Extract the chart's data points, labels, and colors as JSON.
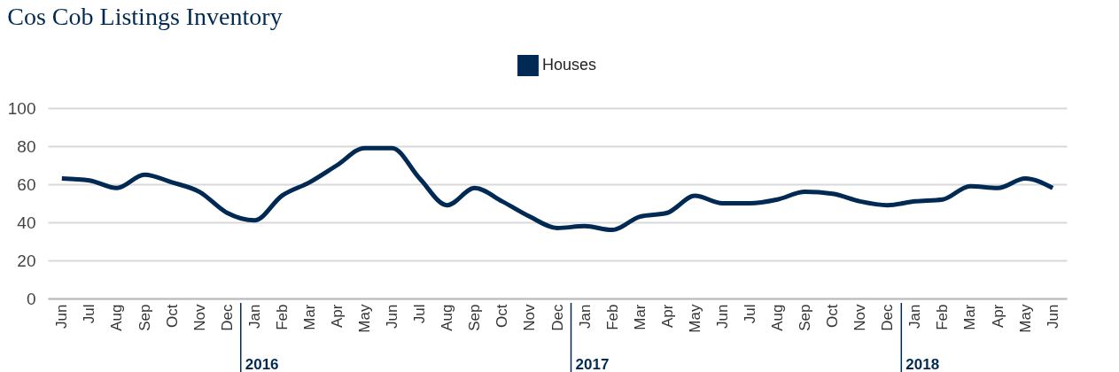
{
  "chart_data": {
    "type": "line",
    "title": "Cos Cob Listings Inventory",
    "x": [
      "2015-06",
      "2015-07",
      "2015-08",
      "2015-09",
      "2015-10",
      "2015-11",
      "2015-12",
      "2016-01",
      "2016-02",
      "2016-03",
      "2016-04",
      "2016-05",
      "2016-06",
      "2016-07",
      "2016-08",
      "2016-09",
      "2016-10",
      "2016-11",
      "2016-12",
      "2017-01",
      "2017-02",
      "2017-03",
      "2017-04",
      "2017-05",
      "2017-06",
      "2017-07",
      "2017-08",
      "2017-09",
      "2017-10",
      "2017-11",
      "2017-12",
      "2018-01",
      "2018-02",
      "2018-03",
      "2018-04",
      "2018-05",
      "2018-06"
    ],
    "series": [
      {
        "name": "Houses",
        "color": "#002a54",
        "values": [
          63,
          62,
          58,
          65,
          61,
          56,
          45,
          41,
          54,
          61,
          70,
          79,
          79,
          63,
          49,
          58,
          51,
          43,
          37,
          38,
          36,
          43,
          45,
          54,
          50,
          50,
          52,
          56,
          55,
          51,
          49,
          51,
          52,
          59,
          58,
          63,
          58
        ]
      }
    ],
    "xticks": [
      {
        "value": "2015-06",
        "label": "Jun"
      },
      {
        "value": "2015-07",
        "label": "Jul"
      },
      {
        "value": "2015-08",
        "label": "Aug"
      },
      {
        "value": "2015-09",
        "label": "Sep"
      },
      {
        "value": "2015-10",
        "label": "Oct"
      },
      {
        "value": "2015-11",
        "label": "Nov"
      },
      {
        "value": "2015-12",
        "label": "Dec"
      },
      {
        "value": "2016-01",
        "label": "Jan"
      },
      {
        "value": "2016-02",
        "label": "Feb"
      },
      {
        "value": "2016-03",
        "label": "Mar"
      },
      {
        "value": "2016-04",
        "label": "Apr"
      },
      {
        "value": "2016-05",
        "label": "May"
      },
      {
        "value": "2016-06",
        "label": "Jun"
      },
      {
        "value": "2016-07",
        "label": "Jul"
      },
      {
        "value": "2016-08",
        "label": "Aug"
      },
      {
        "value": "2016-09",
        "label": "Sep"
      },
      {
        "value": "2016-10",
        "label": "Oct"
      },
      {
        "value": "2016-11",
        "label": "Nov"
      },
      {
        "value": "2016-12",
        "label": "Dec"
      },
      {
        "value": "2017-01",
        "label": "Jan"
      },
      {
        "value": "2017-02",
        "label": "Feb"
      },
      {
        "value": "2017-03",
        "label": "Mar"
      },
      {
        "value": "2017-04",
        "label": "Apr"
      },
      {
        "value": "2017-05",
        "label": "May"
      },
      {
        "value": "2017-06",
        "label": "Jun"
      },
      {
        "value": "2017-07",
        "label": "Jul"
      },
      {
        "value": "2017-08",
        "label": "Aug"
      },
      {
        "value": "2017-09",
        "label": "Sep"
      },
      {
        "value": "2017-10",
        "label": "Oct"
      },
      {
        "value": "2017-11",
        "label": "Nov"
      },
      {
        "value": "2017-12",
        "label": "Dec"
      },
      {
        "value": "2018-01",
        "label": "Jan"
      },
      {
        "value": "2018-02",
        "label": "Feb"
      },
      {
        "value": "2018-03",
        "label": "Mar"
      },
      {
        "value": "2018-04",
        "label": "Apr"
      },
      {
        "value": "2018-05",
        "label": "May"
      },
      {
        "value": "2018-06",
        "label": "Jun"
      }
    ],
    "xlim": [
      "2015-05-16",
      "2018-06-16"
    ],
    "annotations": [
      "2016",
      "2017",
      "2018"
    ],
    "ylim": [
      0,
      100
    ],
    "yticks": [
      0,
      20,
      40,
      60,
      80,
      100
    ],
    "grid": "y",
    "legend": "top"
  }
}
